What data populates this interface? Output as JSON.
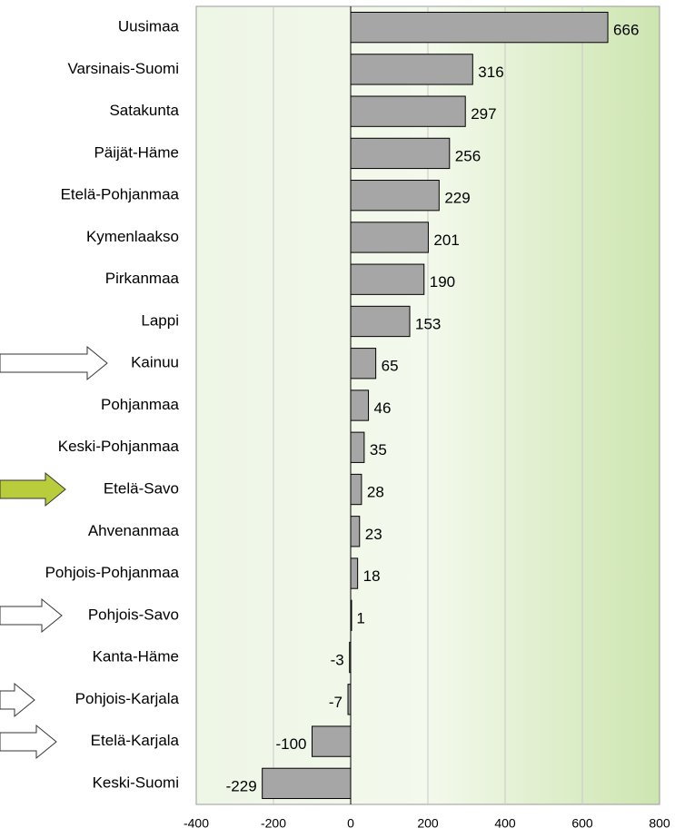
{
  "chart_data": {
    "type": "barh",
    "categories": [
      "Uusimaa",
      "Varsinais-Suomi",
      "Satakunta",
      "Päijät-Häme",
      "Etelä-Pohjanmaa",
      "Kymenlaakso",
      "Pirkanmaa",
      "Lappi",
      "Kainuu",
      "Pohjanmaa",
      "Keski-Pohjanmaa",
      "Etelä-Savo",
      "Ahvenanmaa",
      "Pohjois-Pohjanmaa",
      "Pohjois-Savo",
      "Kanta-Häme",
      "Pohjois-Karjala",
      "Etelä-Karjala",
      "Keski-Suomi"
    ],
    "values": [
      666,
      316,
      297,
      256,
      229,
      201,
      190,
      153,
      65,
      46,
      35,
      28,
      23,
      18,
      1,
      -3,
      -7,
      -100,
      -229
    ],
    "color": "#a6a6a6",
    "xlim": [
      -400,
      800
    ],
    "xticks": [
      -400,
      -200,
      0,
      200,
      400,
      600,
      800
    ],
    "grid": true
  }
}
